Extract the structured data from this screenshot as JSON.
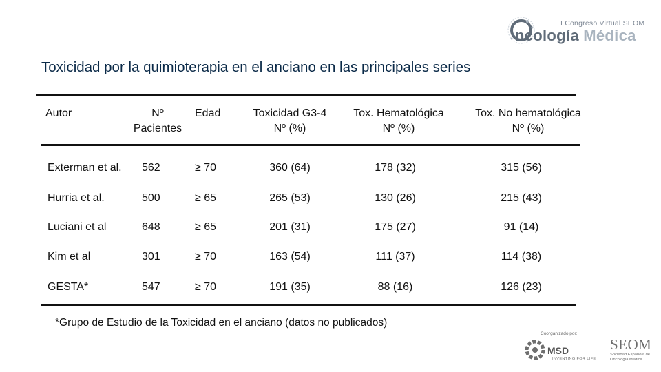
{
  "logo": {
    "superscript": "I Congreso Virtual SEOM",
    "word_part1": "ncología",
    "word_part2": " Médica",
    "letter_o": "O"
  },
  "title": "Toxicidad por la quimioterapia en el anciano en las principales series",
  "table": {
    "headers": {
      "autor": "Autor",
      "n_line1": "Nº",
      "n_line2": "Pacientes",
      "edad": "Edad",
      "g34_line1": "Toxicidad G3-4",
      "g34_line2": "Nº (%)",
      "hem_line1": "Tox. Hematológica",
      "hem_line2": "Nº (%)",
      "nohem_line1": "Tox. No hematológica",
      "nohem_line2": "Nº (%)"
    },
    "rows": [
      {
        "autor": "Exterman et al.",
        "n": "562",
        "edad": "≥ 70",
        "g34": "360 (64)",
        "hem": "178 (32)",
        "nohem": "315 (56)"
      },
      {
        "autor": "Hurria et al.",
        "n": "500",
        "edad": "≥ 65",
        "g34": "265 (53)",
        "hem": "130 (26)",
        "nohem": "215 (43)"
      },
      {
        "autor": "Luciani et al",
        "n": "648",
        "edad": "≥ 65",
        "g34": "201 (31)",
        "hem": "175 (27)",
        "nohem": "91 (14)"
      },
      {
        "autor": "Kim et al",
        "n": "301",
        "edad": "≥ 70",
        "g34": "163 (54)",
        "hem": "111 (37)",
        "nohem": "114 (38)"
      },
      {
        "autor": "GESTA*",
        "n": "547",
        "edad": "≥ 70",
        "g34": "191 (35)",
        "hem": "88 (16)",
        "nohem": "126 (23)"
      }
    ]
  },
  "footnote": "*Grupo de Estudio de la Toxicidad en el anciano (datos no publicados)",
  "sponsors": {
    "coorganized": "Coorganizado por:",
    "msd": "MSD",
    "msd_tagline": "INVENTING FOR LIFE",
    "seom": "SEOM",
    "seom_sub": "Sociedad Española de Oncología Médica"
  }
}
